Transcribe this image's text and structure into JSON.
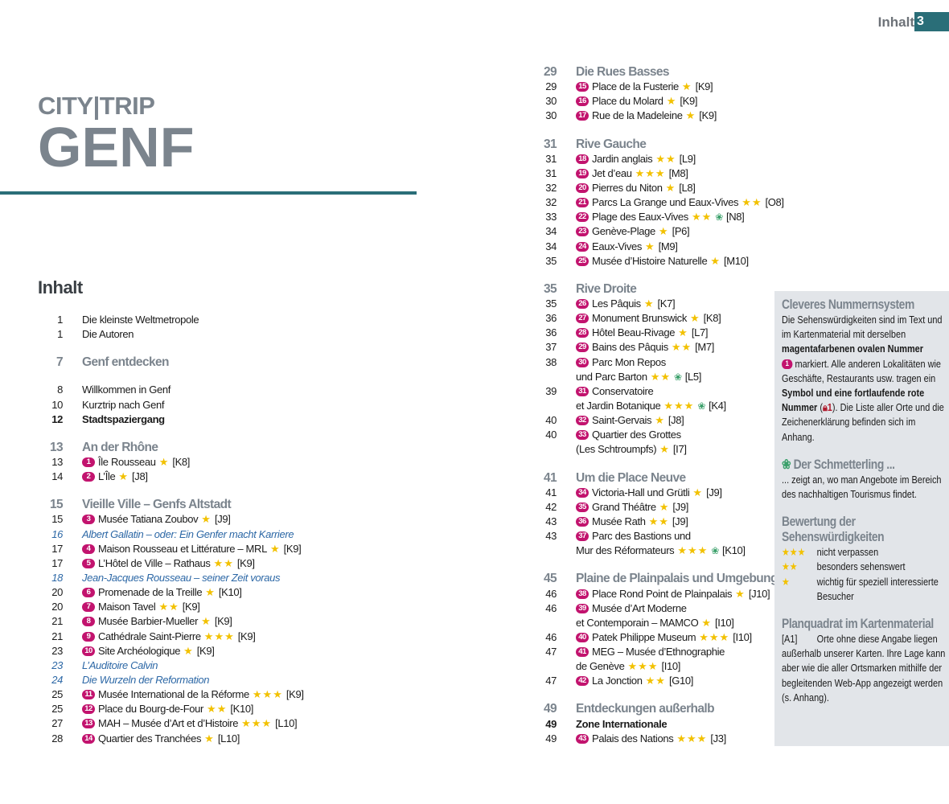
{
  "header": {
    "running_title": "Inhalt",
    "page_number": "3"
  },
  "brand": {
    "line1": "CITY|TRIP",
    "line2": "GENF"
  },
  "contents_title": "Inhalt",
  "colors": {
    "accent_teal": "#2a6e78",
    "badge_magenta": "#c2136e",
    "star_yellow": "#f2c100",
    "italic_blue": "#2d68a6",
    "heading_gray": "#7b848d",
    "sidebar_bg": "#e2e5e9"
  },
  "toc": {
    "left": [
      {
        "p": "1",
        "t": "Die kleinste Weltmetropole"
      },
      {
        "p": "1",
        "t": "Die Autoren"
      },
      {
        "type": "sec",
        "p": "7",
        "t": "Genf entdecken",
        "gapafter": true
      },
      {
        "p": "8",
        "t": "Willkommen in Genf"
      },
      {
        "p": "10",
        "t": "Kurztrip nach Genf"
      },
      {
        "type": "bold",
        "p": "12",
        "t": "Stadtspaziergang"
      },
      {
        "type": "sec",
        "p": "13",
        "t": "An der Rhône"
      },
      {
        "p": "13",
        "n": "1",
        "t": "Île Rousseau",
        "s": 1,
        "g": "[K8]"
      },
      {
        "p": "14",
        "n": "2",
        "t": "L’Île",
        "s": 1,
        "g": "[J8]"
      },
      {
        "type": "sec",
        "p": "15",
        "t": "Vieille Ville – Genfs Altstadt"
      },
      {
        "p": "15",
        "n": "3",
        "t": "Musée Tatiana Zoubov",
        "s": 1,
        "g": "[J9]"
      },
      {
        "type": "italic",
        "p": "16",
        "t": "Albert Gallatin – oder: Ein Genfer macht Karriere"
      },
      {
        "p": "17",
        "n": "4",
        "t": "Maison Rousseau et Littérature – MRL",
        "s": 1,
        "g": "[K9]"
      },
      {
        "p": "17",
        "n": "5",
        "t": "L’Hôtel de Ville – Rathaus",
        "s": 2,
        "g": "[K9]"
      },
      {
        "type": "italic",
        "p": "18",
        "t": "Jean-Jacques Rousseau – seiner Zeit voraus"
      },
      {
        "p": "20",
        "n": "6",
        "t": "Promenade de la Treille",
        "s": 1,
        "g": "[K10]"
      },
      {
        "p": "20",
        "n": "7",
        "t": "Maison Tavel",
        "s": 2,
        "g": "[K9]"
      },
      {
        "p": "21",
        "n": "8",
        "t": "Musée Barbier-Mueller",
        "s": 1,
        "g": "[K9]"
      },
      {
        "p": "21",
        "n": "9",
        "t": "Cathédrale Saint-Pierre",
        "s": 3,
        "g": "[K9]"
      },
      {
        "p": "23",
        "n": "10",
        "t": "Site Archéologique",
        "s": 1,
        "g": "[K9]"
      },
      {
        "type": "italic",
        "p": "23",
        "t": "L’Auditoire Calvin"
      },
      {
        "type": "italic",
        "p": "24",
        "t": "Die Wurzeln der Reformation"
      },
      {
        "p": "25",
        "n": "11",
        "t": "Musée International de la Réforme",
        "s": 3,
        "g": "[K9]"
      },
      {
        "p": "25",
        "n": "12",
        "t": "Place du Bourg-de-Four",
        "s": 2,
        "g": "[K10]"
      },
      {
        "p": "27",
        "n": "13",
        "t": "MAH – Musée d’Art et d’Histoire",
        "s": 3,
        "g": "[L10]"
      },
      {
        "p": "28",
        "n": "14",
        "t": "Quartier des Tranchées",
        "s": 1,
        "g": "[L10]"
      }
    ],
    "right": [
      {
        "type": "sec",
        "p": "29",
        "t": "Die Rues Basses",
        "first": true
      },
      {
        "p": "29",
        "n": "15",
        "t": "Place de la Fusterie",
        "s": 1,
        "g": "[K9]"
      },
      {
        "p": "30",
        "n": "16",
        "t": "Place du Molard",
        "s": 1,
        "g": "[K9]"
      },
      {
        "p": "30",
        "n": "17",
        "t": "Rue de la Madeleine",
        "s": 1,
        "g": "[K9]"
      },
      {
        "type": "sec",
        "p": "31",
        "t": "Rive Gauche"
      },
      {
        "p": "31",
        "n": "18",
        "t": "Jardin anglais",
        "s": 2,
        "g": "[L9]"
      },
      {
        "p": "31",
        "n": "19",
        "t": "Jet d’eau",
        "s": 3,
        "g": "[M8]"
      },
      {
        "p": "32",
        "n": "20",
        "t": "Pierres du Niton",
        "s": 1,
        "g": "[L8]"
      },
      {
        "p": "32",
        "n": "21",
        "t": "Parcs La Grange und Eaux-Vives",
        "s": 2,
        "g": "[O8]"
      },
      {
        "p": "33",
        "n": "22",
        "t": "Plage des Eaux-Vives",
        "s": 2,
        "b": true,
        "g": "[N8]"
      },
      {
        "p": "34",
        "n": "23",
        "t": "Genève-Plage",
        "s": 1,
        "g": "[P6]"
      },
      {
        "p": "34",
        "n": "24",
        "t": "Eaux-Vives",
        "s": 1,
        "g": "[M9]"
      },
      {
        "p": "35",
        "n": "25",
        "t": "Musée d’Histoire Naturelle",
        "s": 1,
        "g": "[M10]"
      },
      {
        "type": "sec",
        "p": "35",
        "t": "Rive Droite"
      },
      {
        "p": "35",
        "n": "26",
        "t": "Les Pâquis",
        "s": 1,
        "g": "[K7]"
      },
      {
        "p": "36",
        "n": "27",
        "t": "Monument Brunswick",
        "s": 1,
        "g": "[K8]"
      },
      {
        "p": "36",
        "n": "28",
        "t": "Hôtel Beau-Rivage",
        "s": 1,
        "g": "[L7]"
      },
      {
        "p": "37",
        "n": "29",
        "t": "Bains des Pâquis",
        "s": 2,
        "g": "[M7]"
      },
      {
        "p": "38",
        "n": "30",
        "t": "Parc Mon Repos",
        "t2": "und Parc Barton",
        "s": 2,
        "b": true,
        "g": "[L5]"
      },
      {
        "p": "39",
        "n": "31",
        "t": "Conservatoire",
        "t2": "et Jardin Botanique",
        "s": 3,
        "b": true,
        "g": "[K4]"
      },
      {
        "p": "40",
        "n": "32",
        "t": "Saint-Gervais",
        "s": 1,
        "g": "[J8]"
      },
      {
        "p": "40",
        "n": "33",
        "t": "Quartier des Grottes",
        "t2": "(Les Schtroumpfs)",
        "s": 1,
        "g": "[I7]"
      },
      {
        "type": "sec",
        "p": "41",
        "t": "Um die Place Neuve"
      },
      {
        "p": "41",
        "n": "34",
        "t": "Victoria-Hall und Grütli",
        "s": 1,
        "g": "[J9]"
      },
      {
        "p": "42",
        "n": "35",
        "t": "Grand Théâtre",
        "s": 1,
        "g": "[J9]"
      },
      {
        "p": "43",
        "n": "36",
        "t": "Musée Rath",
        "s": 2,
        "g": "[J9]"
      },
      {
        "p": "43",
        "n": "37",
        "t": "Parc des Bastions und",
        "t2": "Mur des Réformateurs",
        "s": 3,
        "b": true,
        "g": "[K10]"
      },
      {
        "type": "sec",
        "p": "45",
        "t": "Plaine de Plainpalais und Umgebung"
      },
      {
        "p": "46",
        "n": "38",
        "t": "Place Rond Point de Plainpalais",
        "s": 1,
        "g": "[J10]"
      },
      {
        "p": "46",
        "n": "39",
        "t": "Musée d’Art Moderne",
        "t2": "et Contemporain – MAMCO",
        "s": 1,
        "g": "[I10]"
      },
      {
        "p": "46",
        "n": "40",
        "t": "Patek Philippe Museum",
        "s": 3,
        "g": "[I10]"
      },
      {
        "p": "47",
        "n": "41",
        "t": "MEG – Musée d’Ethnographie",
        "t2": "de Genève",
        "s": 3,
        "g": "[I10]"
      },
      {
        "p": "47",
        "n": "42",
        "t": "La Jonction",
        "s": 2,
        "g": "[G10]"
      },
      {
        "type": "sec",
        "p": "49",
        "t": "Entdeckungen außerhalb"
      },
      {
        "type": "bold",
        "p": "49",
        "t": "Zone Internationale"
      },
      {
        "p": "49",
        "n": "43",
        "t": "Palais des Nations",
        "s": 3,
        "g": "[J3]"
      }
    ]
  },
  "sidebar": {
    "numbering": {
      "title": "Cleveres Nummernsystem",
      "t1": "Die Sehenswürdigkeiten sind im Text und im Kartenmaterial mit derselben ",
      "t2": "magentafarbenen ovalen Nummer",
      "badge": "1",
      "t3": " markiert. Alle anderen Lokalitä­ten wie Geschäfte, Restaurants usw. tragen ein ",
      "t4": "Symbol und eine fortlau­fende rote Nummer",
      "t5": " (",
      "lock_num": "1",
      "t6": "). Die Liste aller Orte und die Zeichenerklärung befinden sich im Anhang."
    },
    "butterfly": {
      "title": "Der Schmetterling ...",
      "text": "... zeigt an, wo man Angebote im Bereich des nachhaltigen Touris­mus findet."
    },
    "rating": {
      "title": "Bewertung der Sehenswürdigkeiten",
      "items": [
        {
          "stars": 3,
          "text": "nicht verpassen"
        },
        {
          "stars": 2,
          "text": "besonders sehenswert"
        },
        {
          "stars": 1,
          "text": "wichtig für speziell interessierte Besucher"
        }
      ]
    },
    "grid": {
      "title": "Planquadrat im Kartenmaterial",
      "code": "[A1]",
      "text": "Orte ohne diese Angabe liegen außerhalb unserer Karten. Ihre Lage kann aber wie die aller Ortsmarken mithilfe der begleiten­den Web-App angezeigt werden (s. Anhang)."
    }
  }
}
